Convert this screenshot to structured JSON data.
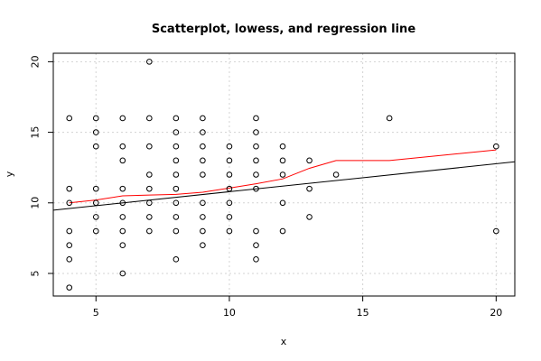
{
  "chart_data": {
    "type": "scatter",
    "title": "Scatterplot, lowess, and regression line",
    "xlabel": "x",
    "ylabel": "y",
    "xlim": [
      3.4,
      20.7
    ],
    "ylim": [
      3.4,
      20.6
    ],
    "x_ticks": [
      5,
      10,
      15,
      20
    ],
    "y_ticks": [
      5,
      10,
      15,
      20
    ],
    "grid": true,
    "colors": {
      "points": "#000000",
      "lowess": "#ff0000",
      "regression": "#000000",
      "grid": "#d3d3d3"
    },
    "points": [
      [
        4,
        16
      ],
      [
        4,
        11
      ],
      [
        4,
        10
      ],
      [
        4,
        8
      ],
      [
        4,
        7
      ],
      [
        4,
        6
      ],
      [
        4,
        4
      ],
      [
        5,
        16
      ],
      [
        5,
        15
      ],
      [
        5,
        14
      ],
      [
        5,
        11
      ],
      [
        5,
        10
      ],
      [
        5,
        9
      ],
      [
        5,
        8
      ],
      [
        6,
        16
      ],
      [
        6,
        14
      ],
      [
        6,
        13
      ],
      [
        6,
        11
      ],
      [
        6,
        10
      ],
      [
        6,
        9
      ],
      [
        6,
        8
      ],
      [
        6,
        7
      ],
      [
        6,
        5
      ],
      [
        7,
        20
      ],
      [
        7,
        16
      ],
      [
        7,
        14
      ],
      [
        7,
        12
      ],
      [
        7,
        11
      ],
      [
        7,
        10
      ],
      [
        7,
        9
      ],
      [
        7,
        8
      ],
      [
        8,
        16
      ],
      [
        8,
        15
      ],
      [
        8,
        14
      ],
      [
        8,
        13
      ],
      [
        8,
        12
      ],
      [
        8,
        11
      ],
      [
        8,
        10
      ],
      [
        8,
        9
      ],
      [
        8,
        8
      ],
      [
        8,
        6
      ],
      [
        9,
        16
      ],
      [
        9,
        15
      ],
      [
        9,
        14
      ],
      [
        9,
        13
      ],
      [
        9,
        12
      ],
      [
        9,
        10
      ],
      [
        9,
        9
      ],
      [
        9,
        8
      ],
      [
        9,
        7
      ],
      [
        10,
        14
      ],
      [
        10,
        13
      ],
      [
        10,
        12
      ],
      [
        10,
        11
      ],
      [
        10,
        10
      ],
      [
        10,
        9
      ],
      [
        10,
        8
      ],
      [
        11,
        16
      ],
      [
        11,
        15
      ],
      [
        11,
        14
      ],
      [
        11,
        13
      ],
      [
        11,
        12
      ],
      [
        11,
        11
      ],
      [
        11,
        8
      ],
      [
        11,
        7
      ],
      [
        11,
        6
      ],
      [
        12,
        14
      ],
      [
        12,
        13
      ],
      [
        12,
        12
      ],
      [
        12,
        10
      ],
      [
        12,
        8
      ],
      [
        13,
        13
      ],
      [
        13,
        11
      ],
      [
        13,
        9
      ],
      [
        14,
        12
      ],
      [
        16,
        16
      ],
      [
        20,
        14
      ],
      [
        20,
        8
      ]
    ],
    "lowess": [
      [
        4,
        10
      ],
      [
        5,
        10.2
      ],
      [
        6,
        10.5
      ],
      [
        7,
        10.55
      ],
      [
        8,
        10.6
      ],
      [
        9,
        10.75
      ],
      [
        10,
        11.05
      ],
      [
        11,
        11.35
      ],
      [
        12,
        11.7
      ],
      [
        13,
        12.45
      ],
      [
        14,
        13
      ],
      [
        15,
        13
      ],
      [
        16,
        13
      ],
      [
        20,
        13.75
      ]
    ],
    "regression": {
      "intercept": 8.81,
      "slope": 0.198
    }
  }
}
